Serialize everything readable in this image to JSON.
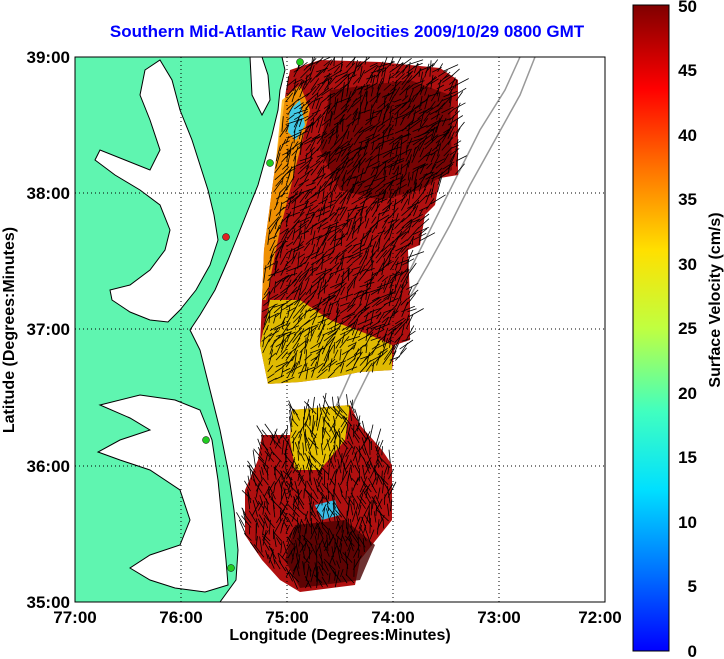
{
  "title": "Southern Mid-Atlantic Raw Velocities 2009/10/29 0800 GMT",
  "axes": {
    "xlabel": "Longitude (Degrees:Minutes)",
    "ylabel": "Latitude (Degrees:Minutes)",
    "x_ticks": [
      "77:00",
      "76:00",
      "75:00",
      "74:00",
      "73:00",
      "72:00"
    ],
    "y_ticks": [
      "39:00",
      "38:00",
      "37:00",
      "36:00",
      "35:00"
    ],
    "x_range": [
      -77,
      -72
    ],
    "y_range": [
      35,
      39
    ],
    "grid": "dotted"
  },
  "colorbar": {
    "label": "Surface Velocity (cm/s)",
    "ticks": [
      "50",
      "45",
      "40",
      "35",
      "30",
      "25",
      "20",
      "15",
      "10",
      "5",
      "0"
    ],
    "range": [
      0,
      50
    ],
    "colormap": "jet"
  },
  "colors": {
    "land": "#5ff5b0",
    "title": "#0000ff",
    "station_active": "#22cc22",
    "station_inactive": "#dd2222"
  }
}
